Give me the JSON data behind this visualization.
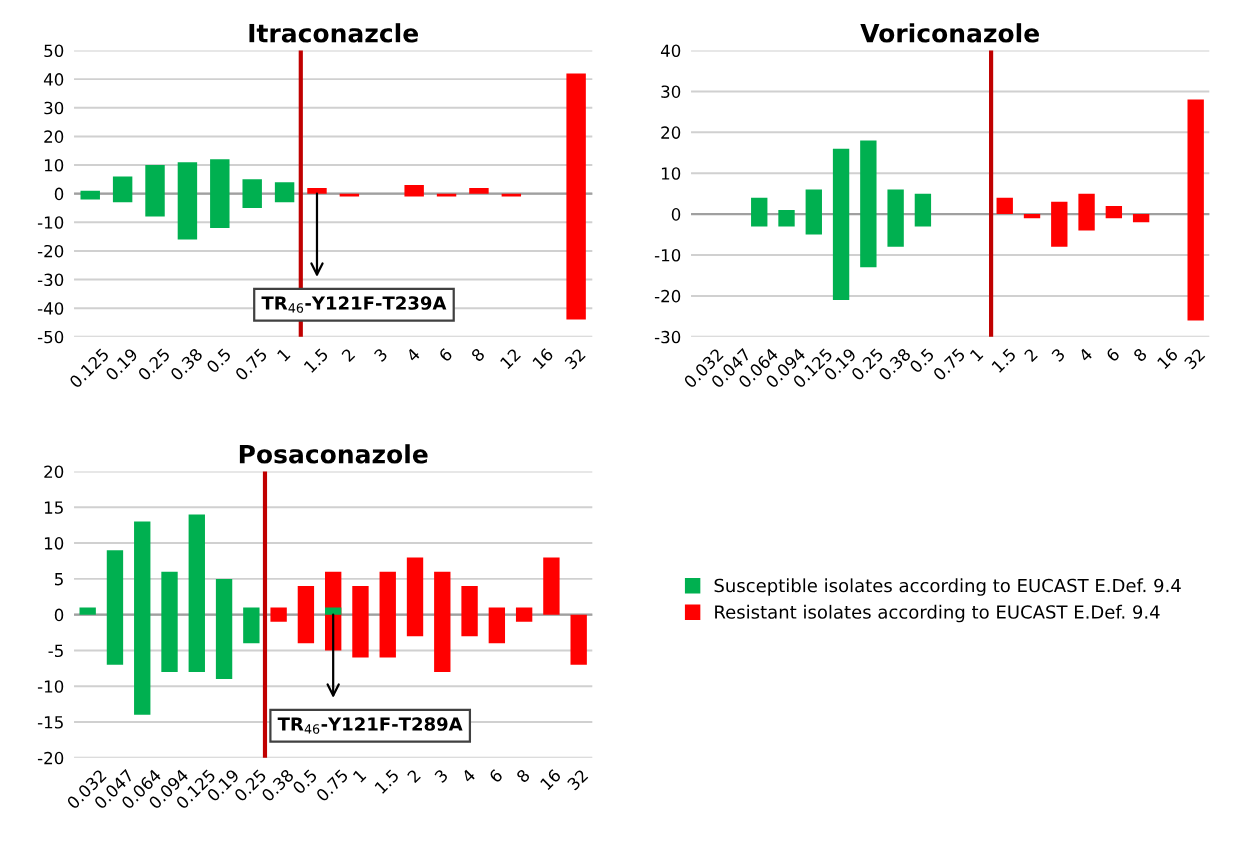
{
  "chart_data": [
    {
      "type": "bar",
      "title": "Itraconazcle",
      "categories": [
        "0.125",
        "0.19",
        "0.25",
        "0.38",
        "0.5",
        "0.75",
        "1",
        "1.5",
        "2",
        "3",
        "4",
        "6",
        "8",
        "12",
        "16",
        "32"
      ],
      "ylim": [
        -50,
        50
      ],
      "yticks": [
        -50,
        -40,
        -30,
        -20,
        -10,
        0,
        10,
        20,
        30,
        40,
        50
      ],
      "grid": "y",
      "series": [
        {
          "color": "#00b050",
          "base": [
            -2,
            -3,
            -8,
            -16,
            -12,
            -5,
            -3,
            null,
            null,
            null,
            null,
            null,
            null,
            null,
            null,
            null
          ],
          "values": [
            3,
            9,
            18,
            27,
            24,
            10,
            7,
            null,
            null,
            null,
            null,
            null,
            null,
            null,
            null,
            null
          ]
        },
        {
          "color": "#ff0000",
          "base": [
            null,
            null,
            null,
            null,
            null,
            null,
            null,
            0,
            -1,
            null,
            -1,
            -1,
            0,
            -1,
            null,
            -44
          ],
          "values": [
            null,
            null,
            null,
            null,
            null,
            null,
            null,
            2,
            1,
            null,
            4,
            1,
            2,
            1,
            null,
            86
          ]
        }
      ],
      "ref_lines": [
        {
          "axis": "x",
          "value": "1.5",
          "color": "#c00000"
        }
      ],
      "annotations": [
        {
          "text": "TR$_{46}$-Y121F-T239A",
          "x": "1.5",
          "y": 0
        }
      ]
    },
    {
      "type": "bar",
      "title": "Voriconazole",
      "categories": [
        "0.032",
        "0.047",
        "0.064",
        "0.094",
        "0.125",
        "0.19",
        "0.25",
        "0.38",
        "0.5",
        "0.75",
        "1",
        "1.5",
        "2",
        "3",
        "4",
        "6",
        "8",
        "16",
        "32"
      ],
      "ylim": [
        -30,
        40
      ],
      "yticks": [
        -30,
        -20,
        -10,
        0,
        10,
        20,
        30,
        40
      ],
      "grid": "y",
      "series": [
        {
          "color": "#00b050",
          "base": [
            null,
            null,
            -3,
            -3,
            -5,
            -21,
            -13,
            -8,
            -3,
            null,
            null,
            null,
            null,
            null,
            null,
            null,
            null,
            null,
            null
          ],
          "values": [
            null,
            null,
            7,
            4,
            11,
            37,
            31,
            14,
            8,
            null,
            null,
            null,
            null,
            null,
            null,
            null,
            null,
            null,
            null
          ]
        },
        {
          "color": "#ff0000",
          "base": [
            null,
            null,
            null,
            null,
            null,
            null,
            null,
            null,
            null,
            null,
            null,
            0,
            -1,
            -8,
            -4,
            -1,
            -2,
            null,
            -26
          ],
          "values": [
            null,
            null,
            null,
            null,
            null,
            null,
            null,
            null,
            null,
            null,
            null,
            4,
            1,
            11,
            9,
            3,
            2,
            null,
            54
          ]
        }
      ],
      "ref_lines": [
        {
          "axis": "x",
          "value": "1.5",
          "color": "#c00000"
        }
      ]
    },
    {
      "type": "bar",
      "title": "Posaconazole",
      "categories": [
        "0.032",
        "0.047",
        "0.064",
        "0.094",
        "0.125",
        "0.19",
        "0.25",
        "0.38",
        "0.5",
        "0.75",
        "1",
        "1.5",
        "2",
        "3",
        "4",
        "6",
        "8",
        "16",
        "32"
      ],
      "ylim": [
        -20,
        20
      ],
      "yticks": [
        -20,
        -15,
        -10,
        -5,
        0,
        5,
        10,
        15,
        20
      ],
      "grid": "y",
      "legend": "right",
      "series": [
        {
          "name": "Resistant isolates according to EUCAST E.Def. 9.4",
          "color": "#ff0000",
          "base": [
            null,
            null,
            null,
            null,
            null,
            null,
            null,
            -1,
            -4,
            -5,
            -6,
            -6,
            -3,
            -8,
            -3,
            -4,
            -1,
            0,
            -7
          ],
          "values": [
            null,
            null,
            null,
            null,
            null,
            null,
            null,
            2,
            8,
            11,
            10,
            12,
            11,
            14,
            7,
            5,
            2,
            8,
            7
          ]
        },
        {
          "name": "Susceptible isolates according to EUCAST E.Def. 9.4",
          "color": "#00b050",
          "base": [
            0,
            -7,
            -14,
            -8,
            -8,
            -9,
            -4,
            null,
            null,
            0,
            null,
            null,
            null,
            null,
            null,
            null,
            null,
            null,
            null
          ],
          "values": [
            1,
            16,
            27,
            14,
            22,
            14,
            5,
            null,
            null,
            1,
            null,
            null,
            null,
            null,
            null,
            null,
            null,
            null,
            null
          ]
        }
      ],
      "ref_lines": [
        {
          "axis": "x",
          "value": "0.38",
          "color": "#c00000"
        }
      ],
      "annotations": [
        {
          "text": "TR$_{46}$-Y121F-T289A",
          "x": "0.75",
          "y": 0
        }
      ]
    }
  ]
}
